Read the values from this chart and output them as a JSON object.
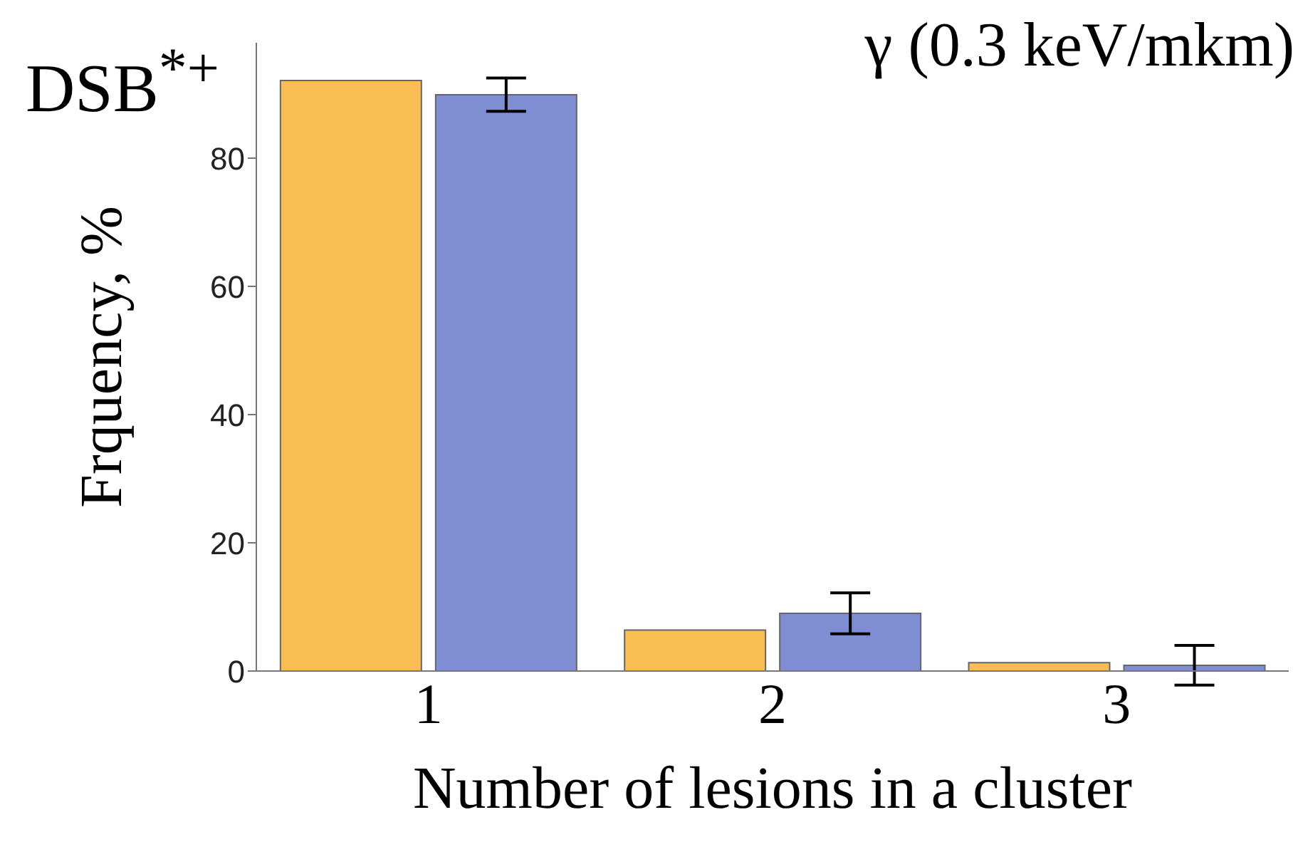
{
  "chart_data": {
    "type": "bar",
    "xlabel": "Number of lesions in a cluster",
    "ylabel": "Frquency, %",
    "annotations": [
      "DSB$^{*+}$",
      "γ (0.3 keV/mkm)"
    ],
    "categories": [
      "1",
      "2",
      "3"
    ],
    "series": [
      {
        "color": "#f9bd53",
        "values": [
          92.1,
          6.4,
          1.3
        ]
      },
      {
        "color": "#7f8dd3",
        "values": [
          89.9,
          9.0,
          0.9
        ],
        "errors": [
          2.6,
          3.2,
          3.1
        ]
      }
    ],
    "ylim": [
      0,
      98
    ],
    "yticks": [
      0,
      20,
      40,
      60,
      80
    ],
    "grid": false,
    "legend": false
  }
}
